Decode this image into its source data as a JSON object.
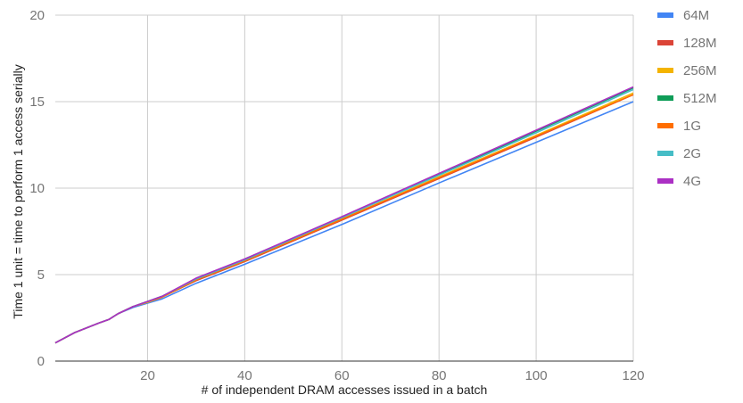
{
  "chart_data": {
    "type": "line",
    "title": "",
    "xlabel": "# of independent DRAM accesses issued in a batch",
    "ylabel": "Time    1 unit = time to perform 1 access serially",
    "xlim": [
      1,
      120
    ],
    "ylim": [
      0,
      20
    ],
    "x_ticks": [
      "20",
      "40",
      "60",
      "80",
      "100",
      "120"
    ],
    "y_ticks": [
      "0",
      "5",
      "10",
      "15",
      "20"
    ],
    "grid": true,
    "legend_position": "right",
    "series": [
      {
        "name": "64M",
        "color": "#4285F4",
        "x": [
          1,
          5,
          10,
          12,
          14,
          17,
          20,
          23,
          30,
          40,
          60,
          80,
          100,
          120
        ],
        "y": [
          1.05,
          1.65,
          2.2,
          2.4,
          2.75,
          3.1,
          3.35,
          3.6,
          4.5,
          5.6,
          7.9,
          10.3,
          12.65,
          15.0
        ]
      },
      {
        "name": "128M",
        "color": "#DB4437",
        "x": [
          1,
          5,
          10,
          12,
          14,
          17,
          20,
          23,
          30,
          40,
          60,
          80,
          100,
          120
        ],
        "y": [
          1.05,
          1.65,
          2.2,
          2.4,
          2.75,
          3.15,
          3.4,
          3.7,
          4.65,
          5.75,
          8.15,
          10.55,
          12.95,
          15.4
        ]
      },
      {
        "name": "256M",
        "color": "#F4B400",
        "x": [
          1,
          5,
          10,
          12,
          14,
          17,
          20,
          23,
          30,
          40,
          60,
          80,
          100,
          120
        ],
        "y": [
          1.05,
          1.65,
          2.2,
          2.4,
          2.75,
          3.15,
          3.4,
          3.7,
          4.7,
          5.8,
          8.2,
          10.65,
          13.05,
          15.5
        ]
      },
      {
        "name": "512M",
        "color": "#0F9D58",
        "x": [
          1,
          5,
          10,
          12,
          14,
          17,
          20,
          23,
          30,
          40,
          60,
          80,
          100,
          120
        ],
        "y": [
          1.05,
          1.65,
          2.2,
          2.4,
          2.75,
          3.15,
          3.45,
          3.75,
          4.75,
          5.9,
          8.3,
          10.8,
          13.3,
          15.8
        ]
      },
      {
        "name": "1G",
        "color": "#FF6D00",
        "x": [
          1,
          5,
          10,
          12,
          14,
          17,
          20,
          23,
          30,
          40,
          60,
          80,
          100,
          120
        ],
        "y": [
          1.05,
          1.65,
          2.2,
          2.4,
          2.75,
          3.15,
          3.45,
          3.7,
          4.7,
          5.8,
          8.2,
          10.6,
          13.0,
          15.4
        ]
      },
      {
        "name": "2G",
        "color": "#46BDC6",
        "x": [
          1,
          5,
          10,
          12,
          14,
          17,
          20,
          23,
          30,
          40,
          60,
          80,
          100,
          120
        ],
        "y": [
          1.05,
          1.65,
          2.2,
          2.4,
          2.75,
          3.15,
          3.45,
          3.75,
          4.75,
          5.85,
          8.3,
          10.75,
          13.2,
          15.7
        ]
      },
      {
        "name": "4G",
        "color": "#AB30C4",
        "x": [
          1,
          5,
          10,
          12,
          14,
          17,
          20,
          23,
          30,
          40,
          60,
          80,
          100,
          120
        ],
        "y": [
          1.05,
          1.65,
          2.2,
          2.4,
          2.75,
          3.15,
          3.45,
          3.75,
          4.8,
          5.9,
          8.35,
          10.85,
          13.35,
          15.85
        ]
      }
    ]
  }
}
